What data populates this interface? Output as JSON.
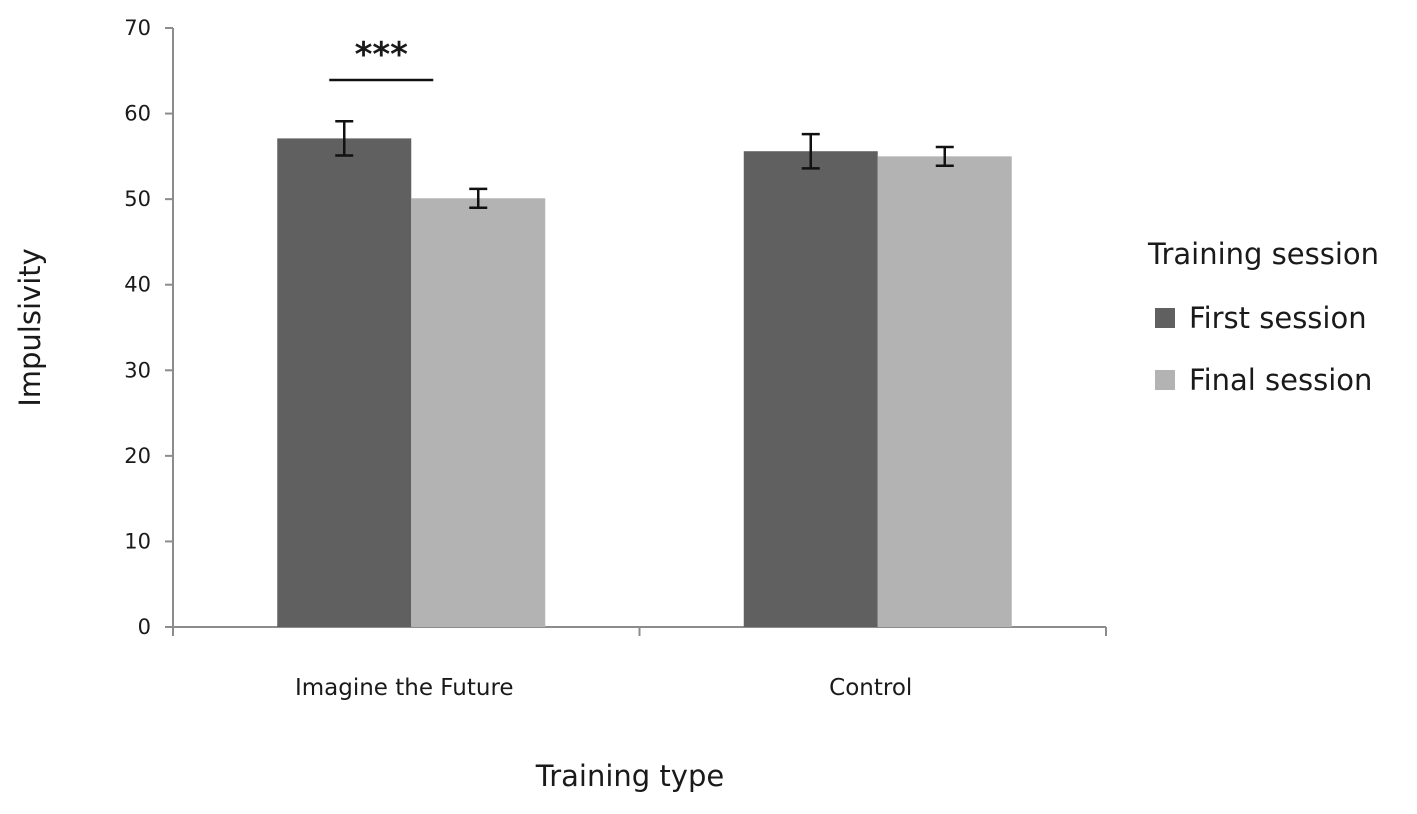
{
  "chart_data": {
    "type": "bar",
    "title": "",
    "xlabel": "Training type",
    "ylabel": "Impulsivity",
    "ylim": [
      0,
      70
    ],
    "yticks": [
      0,
      10,
      20,
      30,
      40,
      50,
      60,
      70
    ],
    "grid": false,
    "categories": [
      "Imagine the Future",
      "Control"
    ],
    "series": [
      {
        "name": "First session",
        "color": "#606060",
        "values": [
          57.1,
          55.6
        ],
        "errors": [
          2.0,
          2.0
        ]
      },
      {
        "name": "Final session",
        "color": "#b3b3b3",
        "values": [
          50.1,
          55.0
        ],
        "errors": [
          1.1,
          1.1
        ]
      }
    ],
    "legend": {
      "title": "Training session",
      "position": "right"
    },
    "annotations": [
      {
        "text": "***",
        "category": "Imagine the Future",
        "type": "significance-bracket"
      }
    ]
  }
}
